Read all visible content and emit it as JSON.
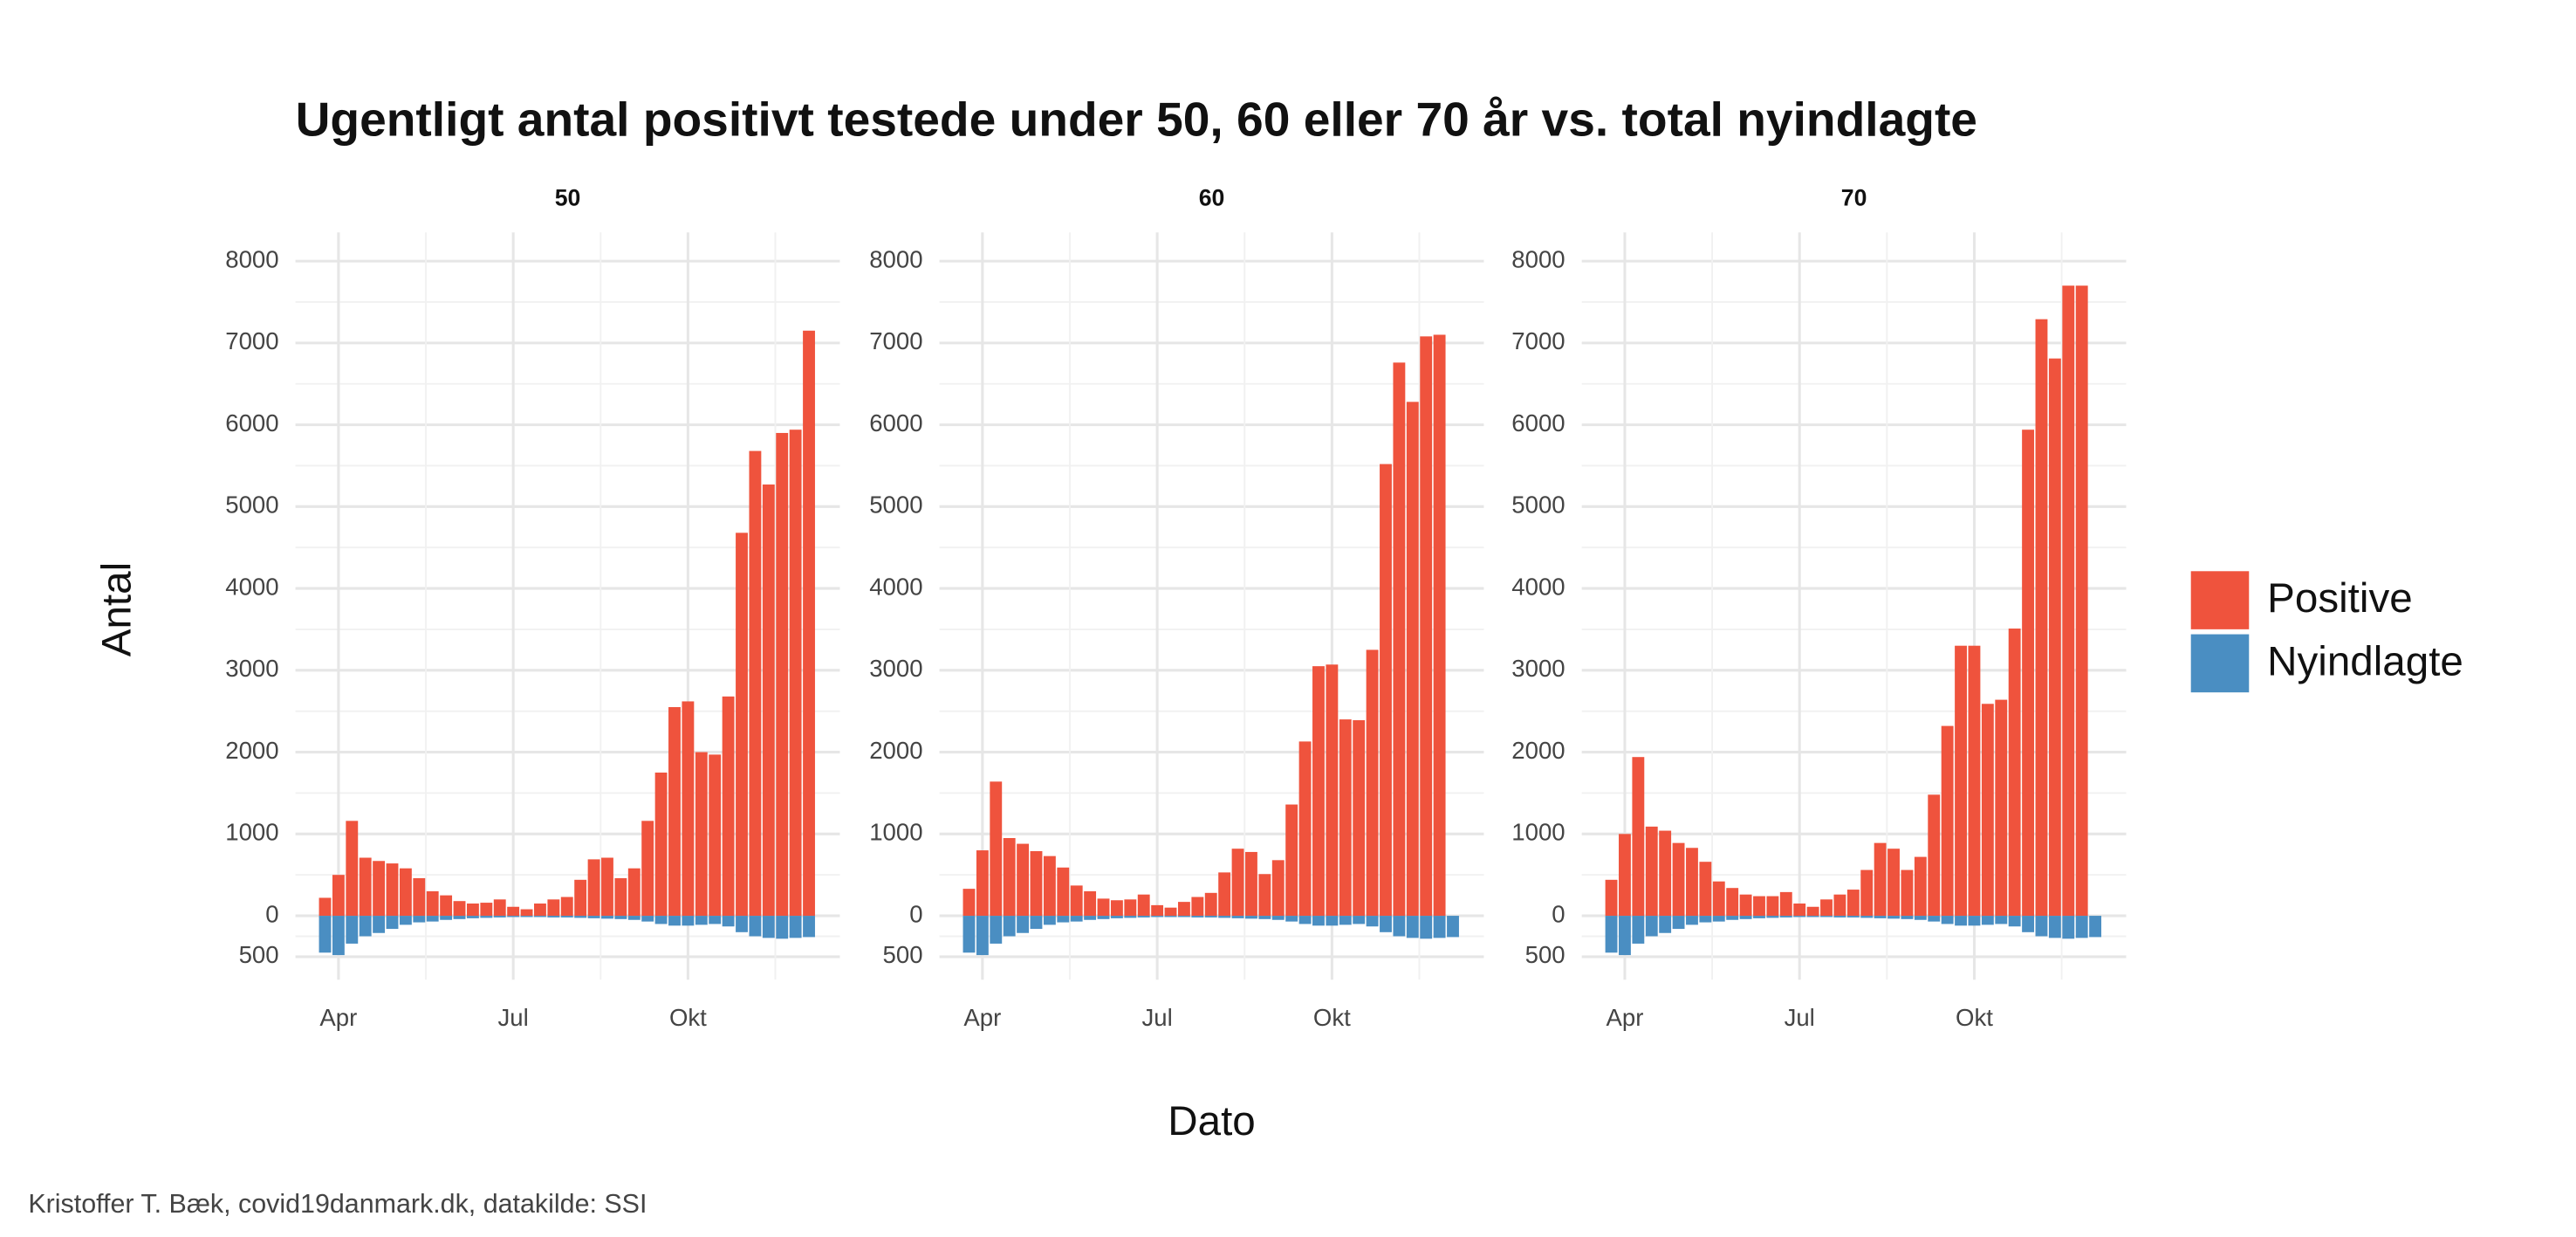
{
  "title": "Ugentligt antal positivt testede under 50, 60 eller 70 år vs. total nyindlagte",
  "x_label": "Dato",
  "y_label": "Antal",
  "caption": "Kristoffer T. Bæk, covid19danmark.dk, datakilde: SSI",
  "chart_data": [
    {
      "type": "bar",
      "title": "50",
      "categories": [
        null,
        "Apr",
        null,
        null,
        null,
        null,
        null,
        null,
        null,
        null,
        null,
        null,
        null,
        null,
        "Jul",
        null,
        null,
        null,
        null,
        null,
        null,
        null,
        null,
        null,
        null,
        null,
        null,
        "Okt",
        null,
        null,
        null,
        null,
        null,
        null,
        null,
        null,
        null
      ],
      "series": [
        {
          "name": "Positive",
          "color": "#ef533d",
          "values": [
            220,
            500,
            1160,
            710,
            670,
            640,
            580,
            460,
            300,
            250,
            180,
            150,
            160,
            200,
            110,
            80,
            150,
            200,
            230,
            440,
            690,
            710,
            460,
            580,
            1160,
            1750,
            2550,
            2620,
            2000,
            1970,
            2680,
            4680,
            5680,
            5270,
            5900,
            5940,
            7150
          ]
        },
        {
          "name": "Nyindlagte",
          "color": "#4a8ec2",
          "values": [
            -450,
            -480,
            -340,
            -250,
            -210,
            -160,
            -110,
            -80,
            -70,
            -50,
            -40,
            -30,
            -25,
            -20,
            -15,
            -15,
            -15,
            -20,
            -20,
            -25,
            -30,
            -35,
            -40,
            -50,
            -70,
            -100,
            -120,
            -120,
            -110,
            -100,
            -130,
            -200,
            -250,
            -270,
            -280,
            -270,
            -260
          ]
        }
      ],
      "ylim": [
        -780,
        8350
      ],
      "yticks": [
        {
          "value": -500,
          "label": "500"
        },
        0,
        1000,
        2000,
        3000,
        4000,
        5000,
        6000,
        7000,
        8000
      ],
      "grid": true
    },
    {
      "type": "bar",
      "title": "60",
      "categories": [
        null,
        "Apr",
        null,
        null,
        null,
        null,
        null,
        null,
        null,
        null,
        null,
        null,
        null,
        null,
        "Jul",
        null,
        null,
        null,
        null,
        null,
        null,
        null,
        null,
        null,
        null,
        null,
        null,
        "Okt",
        null,
        null,
        null,
        null,
        null,
        null,
        null,
        null,
        null
      ],
      "series": [
        {
          "name": "Positive",
          "color": "#ef533d",
          "values": [
            330,
            800,
            1640,
            950,
            880,
            790,
            730,
            590,
            370,
            300,
            210,
            190,
            200,
            260,
            130,
            100,
            170,
            230,
            280,
            530,
            820,
            780,
            510,
            680,
            1360,
            2130,
            3050,
            3070,
            2400,
            2390,
            3250,
            5520,
            6760,
            6280,
            7080,
            7100,
            null
          ]
        },
        {
          "name": "Nyindlagte",
          "color": "#4a8ec2",
          "values": [
            -450,
            -480,
            -340,
            -250,
            -210,
            -160,
            -110,
            -80,
            -70,
            -50,
            -40,
            -30,
            -25,
            -20,
            -15,
            -15,
            -15,
            -20,
            -20,
            -25,
            -30,
            -35,
            -40,
            -50,
            -70,
            -100,
            -120,
            -120,
            -110,
            -100,
            -130,
            -200,
            -250,
            -270,
            -280,
            -270,
            -260
          ]
        }
      ],
      "ylim": [
        -780,
        8350
      ],
      "yticks": [
        {
          "value": -500,
          "label": "500"
        },
        0,
        1000,
        2000,
        3000,
        4000,
        5000,
        6000,
        7000,
        8000
      ],
      "grid": true
    },
    {
      "type": "bar",
      "title": "70",
      "categories": [
        null,
        "Apr",
        null,
        null,
        null,
        null,
        null,
        null,
        null,
        null,
        null,
        null,
        null,
        null,
        "Jul",
        null,
        null,
        null,
        null,
        null,
        null,
        null,
        null,
        null,
        null,
        null,
        null,
        "Okt",
        null,
        null,
        null,
        null,
        null,
        null,
        null,
        null,
        null
      ],
      "series": [
        {
          "name": "Positive",
          "color": "#ef533d",
          "values": [
            440,
            1000,
            1940,
            1090,
            1040,
            890,
            830,
            660,
            420,
            340,
            260,
            240,
            240,
            290,
            150,
            110,
            200,
            260,
            320,
            560,
            890,
            820,
            560,
            720,
            1480,
            2320,
            3300,
            3300,
            2590,
            2640,
            3510,
            5940,
            7290,
            6810,
            7700,
            7700,
            null
          ]
        },
        {
          "name": "Nyindlagte",
          "color": "#4a8ec2",
          "values": [
            -450,
            -480,
            -340,
            -250,
            -210,
            -160,
            -110,
            -80,
            -70,
            -50,
            -40,
            -30,
            -25,
            -20,
            -15,
            -15,
            -15,
            -20,
            -20,
            -25,
            -30,
            -35,
            -40,
            -50,
            -70,
            -100,
            -120,
            -120,
            -110,
            -100,
            -130,
            -200,
            -250,
            -270,
            -280,
            -270,
            -260
          ]
        }
      ],
      "ylim": [
        -780,
        8350
      ],
      "yticks": [
        {
          "value": -500,
          "label": "500"
        },
        0,
        1000,
        2000,
        3000,
        4000,
        5000,
        6000,
        7000,
        8000
      ],
      "grid": true
    }
  ]
}
